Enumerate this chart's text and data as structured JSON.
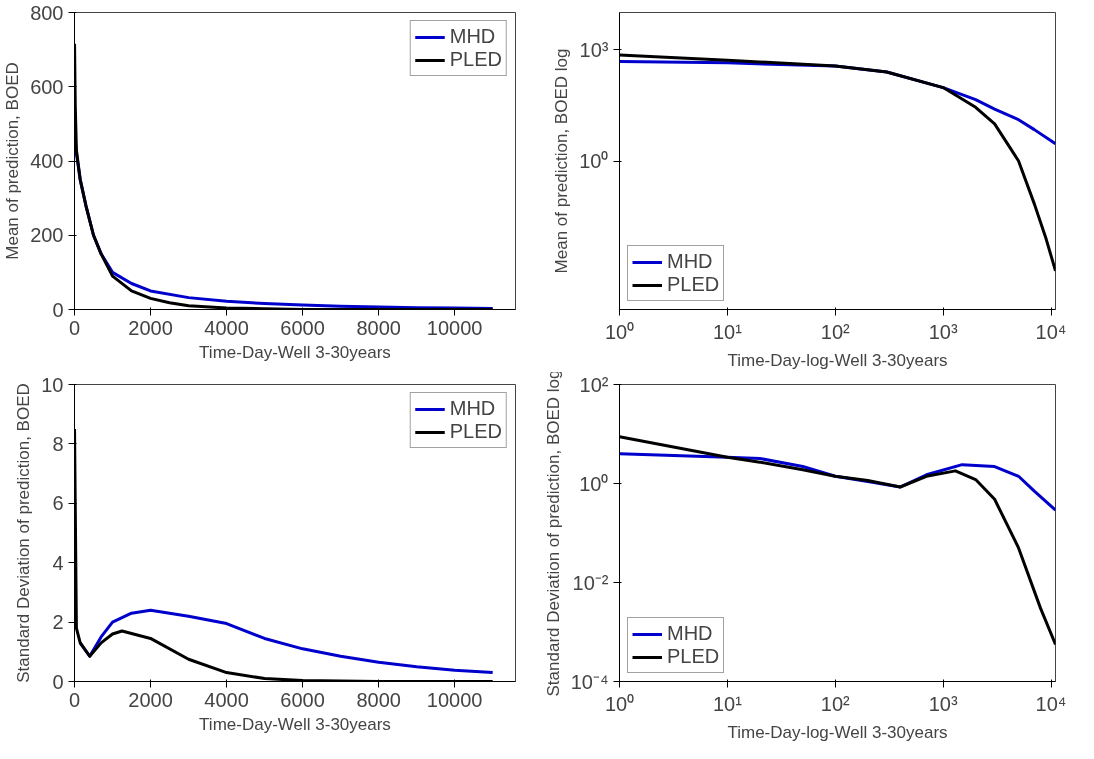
{
  "chart_data": [
    {
      "type": "line",
      "xlabel": "Time-Day-Well 3-30years",
      "ylabel": "Mean of prediction, BOED",
      "xlim": [
        0,
        11600
      ],
      "xticks": [
        0,
        2000,
        4000,
        6000,
        8000,
        10000
      ],
      "ylim": [
        0,
        800
      ],
      "yticks": [
        0,
        200,
        400,
        600,
        800
      ],
      "legend": "top right",
      "series": [
        {
          "name": "MHD",
          "color": "#0000cc",
          "x": [
            1,
            50,
            150,
            300,
            500,
            700,
            1000,
            1500,
            2000,
            3000,
            4000,
            5000,
            6000,
            7000,
            8000,
            9000,
            10000,
            11000
          ],
          "values": [
            480,
            420,
            350,
            280,
            200,
            150,
            100,
            70,
            50,
            32,
            22,
            16,
            12,
            9,
            7,
            5,
            4,
            3
          ]
        },
        {
          "name": "PLED",
          "color": "#000000",
          "x": [
            1,
            20,
            50,
            150,
            300,
            500,
            700,
            1000,
            1500,
            2000,
            2500,
            3000,
            4000,
            5000,
            6000,
            8000,
            11000
          ],
          "values": [
            716,
            550,
            430,
            350,
            280,
            200,
            150,
            90,
            50,
            30,
            18,
            10,
            4,
            2,
            0,
            0,
            0
          ]
        }
      ]
    },
    {
      "type": "line",
      "log": "xy",
      "xlabel": "Time-Day-log-Well 3-30years",
      "ylabel": "Mean of prediction, BOED log",
      "xlim": [
        1,
        11000
      ],
      "xticks": [
        {
          "value": 1,
          "label": "10⁰"
        },
        {
          "value": 10,
          "label": "10¹"
        },
        {
          "value": 100,
          "label": "10²"
        },
        {
          "value": 1000,
          "label": "10³"
        },
        {
          "value": 10000,
          "label": "10⁴"
        }
      ],
      "ylim": [
        0.0001,
        10000
      ],
      "yticks": [
        {
          "value": 1,
          "label": "10⁰"
        },
        {
          "value": 1000,
          "label": "10³"
        }
      ],
      "legend": "bottom left",
      "series": [
        {
          "name": "MHD",
          "color": "#0000cc",
          "x": [
            1,
            10,
            100,
            300,
            1000,
            2000,
            3000,
            5000,
            7000,
            11000
          ],
          "values": [
            480,
            440,
            360,
            250,
            95,
            45,
            25,
            13,
            7,
            2.9
          ]
        },
        {
          "name": "PLED",
          "color": "#000000",
          "x": [
            1,
            10,
            100,
            300,
            1000,
            2000,
            3000,
            5000,
            7000,
            9000,
            11000
          ],
          "values": [
            716,
            520,
            360,
            250,
            95,
            28,
            10,
            1,
            0.07,
            0.008,
            0.0011
          ]
        }
      ]
    },
    {
      "type": "line",
      "xlabel": "Time-Day-Well 3-30years",
      "ylabel": "Standard Deviation of prediction, BOED",
      "xlim": [
        0,
        11600
      ],
      "xticks": [
        0,
        2000,
        4000,
        6000,
        8000,
        10000
      ],
      "ylim": [
        0,
        10
      ],
      "yticks": [
        0,
        2,
        4,
        6,
        8,
        10
      ],
      "legend": "top right",
      "series": [
        {
          "name": "MHD",
          "color": "#0000cc",
          "x": [
            150,
            400,
            700,
            1000,
            1500,
            2000,
            3000,
            4000,
            5000,
            6000,
            7000,
            8000,
            9000,
            10000,
            11000
          ],
          "values": [
            1.3,
            0.85,
            1.5,
            2.0,
            2.3,
            2.4,
            2.2,
            1.95,
            1.45,
            1.1,
            0.85,
            0.65,
            0.5,
            0.38,
            0.3
          ]
        },
        {
          "name": "PLED",
          "color": "#000000",
          "x": [
            1,
            50,
            150,
            400,
            700,
            1000,
            1250,
            2000,
            3000,
            4000,
            5000,
            6000,
            8000,
            11000
          ],
          "values": [
            8.5,
            1.8,
            1.3,
            0.85,
            1.3,
            1.6,
            1.7,
            1.45,
            0.75,
            0.3,
            0.1,
            0.03,
            0,
            0
          ]
        }
      ]
    },
    {
      "type": "line",
      "log": "xy",
      "xlabel": "Time-Day-log-Well 3-30years",
      "ylabel": "Standard Deviation of prediction, BOED log",
      "xlim": [
        1,
        11000
      ],
      "xticks": [
        {
          "value": 1,
          "label": "10⁰"
        },
        {
          "value": 10,
          "label": "10¹"
        },
        {
          "value": 100,
          "label": "10²"
        },
        {
          "value": 1000,
          "label": "10³"
        },
        {
          "value": 10000,
          "label": "10⁴"
        }
      ],
      "ylim": [
        0.0001,
        100
      ],
      "yticks": [
        {
          "value": 0.0001,
          "label": "10⁻⁴"
        },
        {
          "value": 0.01,
          "label": "10⁻²"
        },
        {
          "value": 1,
          "label": "10⁰"
        },
        {
          "value": 100,
          "label": "10²"
        }
      ],
      "legend": "bottom left",
      "series": [
        {
          "name": "MHD",
          "color": "#0000cc",
          "x": [
            1,
            10,
            20,
            50,
            100,
            200,
            400,
            700,
            1500,
            3000,
            5000,
            7000,
            11000
          ],
          "values": [
            4,
            3.4,
            3.2,
            2.2,
            1.4,
            1.1,
            0.85,
            1.5,
            2.4,
            2.2,
            1.4,
            0.7,
            0.29
          ]
        },
        {
          "name": "PLED",
          "color": "#000000",
          "x": [
            1,
            10,
            20,
            50,
            100,
            200,
            400,
            700,
            1300,
            2000,
            3000,
            5000,
            8000,
            11000
          ],
          "values": [
            8.8,
            3.4,
            2.7,
            1.9,
            1.4,
            1.15,
            0.85,
            1.4,
            1.8,
            1.2,
            0.48,
            0.05,
            0.003,
            0.00056
          ]
        }
      ]
    }
  ]
}
